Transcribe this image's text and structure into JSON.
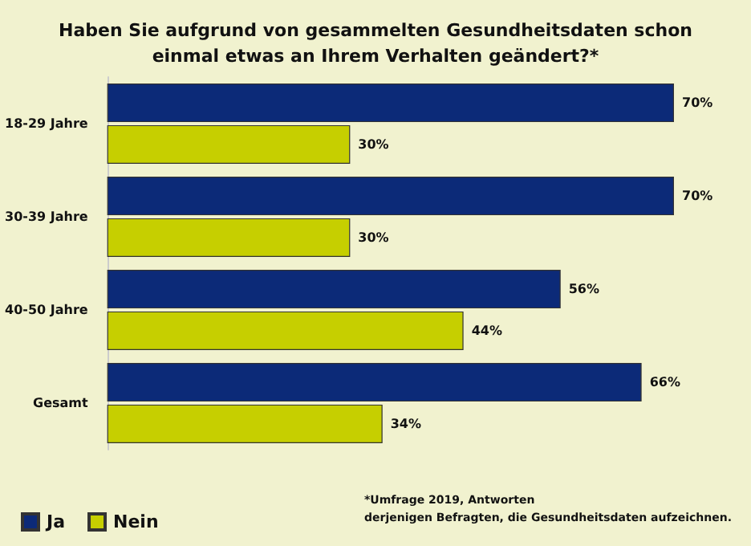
{
  "chart_data": {
    "type": "bar",
    "orientation": "horizontal",
    "title": "Haben Sie aufgrund von gesammelten Gesundheitsdaten schon\neinmal etwas an Ihrem Verhalten geändert?*",
    "categories": [
      "18-29 Jahre",
      "30-39 Jahre",
      "40-50 Jahre",
      "Gesamt"
    ],
    "series": [
      {
        "name": "Ja",
        "color": "#0c2a78",
        "values": [
          70,
          70,
          56,
          66
        ],
        "value_labels": [
          "70%",
          "70%",
          "56%",
          "66%"
        ]
      },
      {
        "name": "Nein",
        "color": "#c6cf00",
        "values": [
          30,
          30,
          44,
          34
        ],
        "value_labels": [
          "30%",
          "30%",
          "44%",
          "34%"
        ]
      }
    ],
    "annotations": [
      "*Umfrage 2019, Antworten\nderjenigen Befragten, die Gesundheitsdaten aufzeichnen."
    ],
    "legend": "bottom left"
  }
}
